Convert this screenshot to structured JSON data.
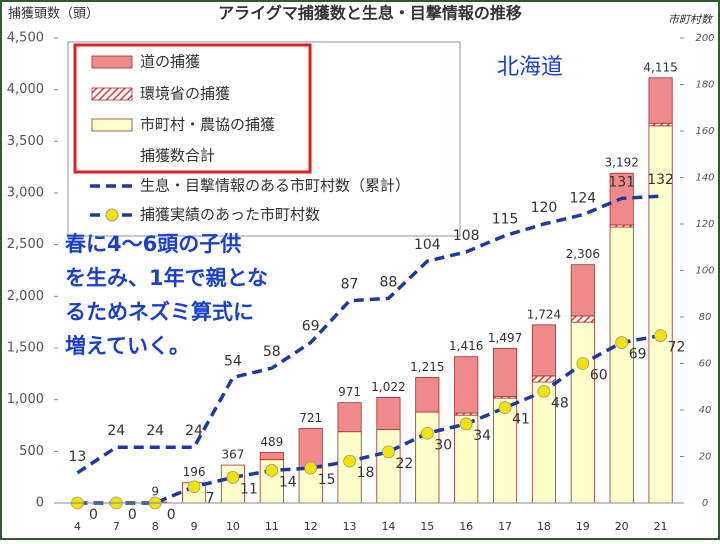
{
  "chart_data": {
    "type": "stacked_bar_line",
    "title": "アライグマ捕獲数と生息・目撃情報の推移",
    "y_label": "捕獲頭数（頭）",
    "y2_label": "市町村数",
    "region": "北海道",
    "annotation": [
      "春に4～6頭の子供",
      "を生み、1年で親とな",
      "るためネズミ算式に",
      "増えていく。"
    ],
    "categories": [
      "4",
      "7",
      "8",
      "9",
      "10",
      "11",
      "12",
      "13",
      "14",
      "15",
      "16",
      "17",
      "18",
      "19",
      "20",
      "21"
    ],
    "series": [
      {
        "name": "道の捕獲",
        "type": "bar",
        "color": "#f08a8a",
        "values": [
          0,
          0,
          0,
          0,
          0,
          70,
          381,
          281,
          312,
          335,
          546,
          467,
          494,
          496,
          502,
          440
        ]
      },
      {
        "name": "環境省の捕獲",
        "type": "bar",
        "hatch": true,
        "color": "#e03c3c",
        "values": [
          0,
          0,
          0,
          0,
          0,
          0,
          0,
          0,
          0,
          0,
          20,
          15,
          60,
          60,
          20,
          25
        ]
      },
      {
        "name": "市町村・農協の捕獲",
        "type": "bar",
        "color": "#ffffcc",
        "values": [
          0,
          0,
          9,
          196,
          367,
          419,
          340,
          690,
          710,
          880,
          850,
          1015,
          1170,
          1750,
          2670,
          3650
        ]
      },
      {
        "name": "生息・目撃情報のある市町村数（累計）",
        "type": "line",
        "dash": true,
        "axis": "y2",
        "color": "#1f3a9e",
        "values": [
          13,
          24,
          24,
          24,
          54,
          58,
          69,
          87,
          88,
          104,
          108,
          115,
          120,
          124,
          131,
          132
        ]
      },
      {
        "name": "捕獲実績のあった市町村数",
        "type": "line",
        "dash": true,
        "marker": "#f2e200",
        "axis": "y2",
        "color": "#1f3a9e",
        "values": [
          0,
          0,
          0,
          7,
          11,
          14,
          15,
          18,
          22,
          30,
          34,
          41,
          48,
          60,
          69,
          72
        ]
      }
    ],
    "totals": {
      "name": "捕獲数合計",
      "values": [
        null,
        null,
        9,
        196,
        367,
        489,
        721,
        971,
        1022,
        1215,
        1416,
        1497,
        1724,
        2306,
        3192,
        4115
      ],
      "value_labels": [
        null,
        null,
        "9",
        "196",
        "367",
        "489",
        "721",
        "971",
        "1,022",
        "1,215",
        "1,416",
        "1,497",
        "1,724",
        "2,306",
        "3,192",
        "4,115"
      ]
    },
    "ylim": [
      0,
      4500
    ],
    "yticks": [
      0,
      500,
      {
        "value": 1000,
        "label": "1,000"
      },
      {
        "value": 1500,
        "label": "1,500"
      },
      {
        "value": 2000,
        "label": "2,000"
      },
      {
        "value": 2500,
        "label": "2,500"
      },
      {
        "value": 3000,
        "label": "3,000"
      },
      {
        "value": 3500,
        "label": "3,500"
      },
      {
        "value": 4000,
        "label": "4,000"
      },
      {
        "value": 4500,
        "label": "4,500"
      }
    ],
    "y2lim": [
      0,
      200
    ],
    "y2ticks": [
      0,
      20,
      40,
      60,
      80,
      100,
      120,
      140,
      160,
      180,
      200
    ],
    "grid": false
  }
}
